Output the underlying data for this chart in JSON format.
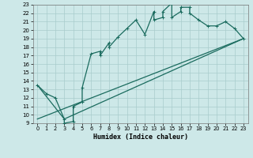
{
  "xlabel": "Humidex (Indice chaleur)",
  "xlim": [
    -0.5,
    23.5
  ],
  "ylim": [
    9,
    23
  ],
  "xticks": [
    0,
    1,
    2,
    3,
    4,
    5,
    6,
    7,
    8,
    9,
    10,
    11,
    12,
    13,
    14,
    15,
    16,
    17,
    18,
    19,
    20,
    21,
    22,
    23
  ],
  "yticks": [
    9,
    10,
    11,
    12,
    13,
    14,
    15,
    16,
    17,
    18,
    19,
    20,
    21,
    22,
    23
  ],
  "bg_color": "#cde8e8",
  "grid_color": "#a8cccc",
  "line_color": "#1a6b5e",
  "line1_x": [
    0,
    1,
    2,
    3,
    3,
    4,
    4,
    5,
    5,
    6,
    7,
    7,
    8,
    8,
    9,
    10,
    11,
    12,
    13,
    13,
    14,
    14,
    15,
    15,
    16,
    16,
    17,
    17,
    18,
    19,
    20,
    21,
    22,
    23
  ],
  "line1_y": [
    13.5,
    12.5,
    12,
    9.5,
    9.0,
    9.2,
    11,
    11.5,
    13.2,
    17.2,
    17.5,
    17.0,
    18.5,
    18.0,
    19.2,
    20.2,
    21.2,
    19.5,
    22.2,
    21.2,
    21.5,
    22.2,
    23.2,
    21.5,
    22.2,
    22.7,
    22.7,
    22.0,
    21.2,
    20.5,
    20.5,
    21.0,
    20.2,
    19.0
  ],
  "line2_x": [
    0,
    23
  ],
  "line2_y": [
    9.5,
    19.0
  ],
  "line3_x": [
    0,
    3,
    23
  ],
  "line3_y": [
    13.5,
    9.5,
    19.0
  ]
}
